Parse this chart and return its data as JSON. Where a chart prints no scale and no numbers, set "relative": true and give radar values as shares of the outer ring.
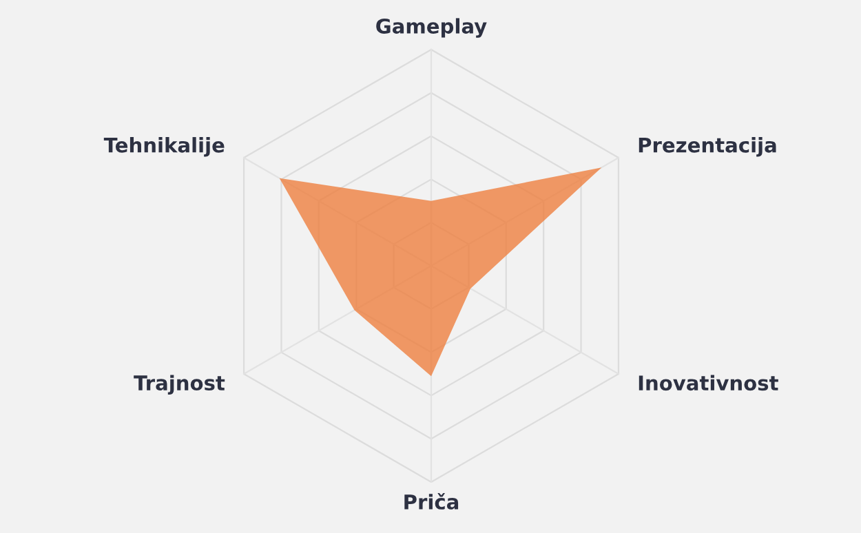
{
  "chart_data": {
    "type": "radar",
    "relative": true,
    "grid": true,
    "categories": [
      "Gameplay",
      "Prezentacija",
      "Inovativnost",
      "Priča",
      "Trajnost",
      "Tehnikalije"
    ],
    "series": [
      {
        "color": "#ee8040",
        "values": [
          0.3,
          0.91,
          0.21,
          0.51,
          0.41,
          0.81
        ]
      }
    ]
  }
}
